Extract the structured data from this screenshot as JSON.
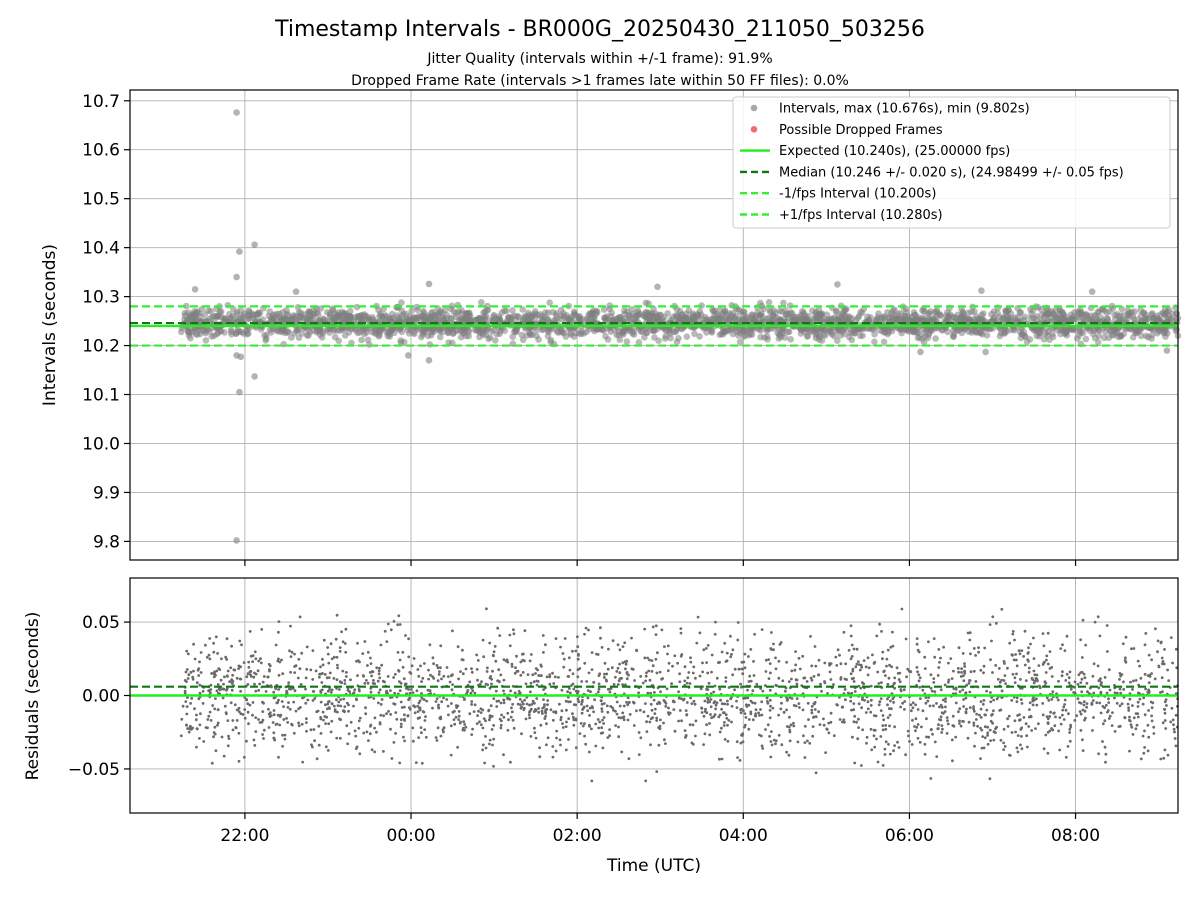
{
  "title": "Timestamp Intervals - BR000G_20250430_211050_503256",
  "subtitle_1": "Jitter Quality (intervals within +/-1 frame): 91.9%",
  "subtitle_2": "Dropped Frame Rate (intervals >1 frames late within 50 FF files): 0.0%",
  "colors": {
    "points": "#808080",
    "dropped": "#e8343a",
    "expected": "#22ee22",
    "median": "#117711",
    "fps_band": "#33ee33",
    "grid": "#b0b0b0"
  },
  "chart_data": [
    {
      "type": "scatter",
      "ylabel": "Intervals (seconds)",
      "xlabel": "",
      "xlim": [
        "20:37",
        "09:14"
      ],
      "ylim": [
        9.762,
        10.722
      ],
      "grid": true,
      "yticks": [
        "9.8",
        "9.9",
        "10.0",
        "10.1",
        "10.2",
        "10.3",
        "10.4",
        "10.5",
        "10.6",
        "10.7"
      ],
      "xticks": [
        "22:00",
        "00:00",
        "02:00",
        "04:00",
        "06:00",
        "08:00"
      ],
      "legend_position": "top-right",
      "legend": [
        {
          "label": "Intervals, max (10.676s), min (9.802s)",
          "kind": "marker",
          "color": "#a8a8a8"
        },
        {
          "label": "Possible Dropped Frames",
          "kind": "marker",
          "color": "#f06c70"
        },
        {
          "label": "Expected (10.240s), (25.00000 fps)",
          "kind": "solid",
          "color": "#22ee22"
        },
        {
          "label": "Median (10.246 +/- 0.020 s), (24.98499 +/- 0.05 fps)",
          "kind": "dashed",
          "color": "#117711"
        },
        {
          "label": "-1/fps Interval (10.200s)",
          "kind": "dashed",
          "color": "#33ee33"
        },
        {
          "label": "+1/fps Interval (10.280s)",
          "kind": "dashed",
          "color": "#33ee33"
        }
      ],
      "series": [
        {
          "name": "Intervals, max (10.676s), min (9.802s)",
          "distribution": "dense band around median",
          "center": 10.246,
          "spread": 0.02,
          "time_range": [
            "21:14",
            "09:14"
          ]
        },
        {
          "name": "Possible Dropped Frames",
          "values": []
        }
      ],
      "reference_lines": [
        {
          "name": "Expected",
          "y": 10.24,
          "style": "solid"
        },
        {
          "name": "Median",
          "y": 10.246,
          "style": "dashed"
        },
        {
          "name": "-1/fps Interval",
          "y": 10.2,
          "style": "dashed"
        },
        {
          "name": "+1/fps Interval",
          "y": 10.28,
          "style": "dashed"
        }
      ],
      "outliers": [
        {
          "x": "21:54",
          "y": 10.676
        },
        {
          "x": "21:56",
          "y": 10.392
        },
        {
          "x": "22:07",
          "y": 10.406
        },
        {
          "x": "21:54",
          "y": 10.34
        },
        {
          "x": "21:56",
          "y": 10.105
        },
        {
          "x": "22:07",
          "y": 10.137
        },
        {
          "x": "21:54",
          "y": 10.18
        },
        {
          "x": "21:57",
          "y": 10.177
        },
        {
          "x": "21:54",
          "y": 9.802
        },
        {
          "x": "00:13",
          "y": 10.326
        },
        {
          "x": "00:13",
          "y": 10.17
        },
        {
          "x": "23:58",
          "y": 10.18
        },
        {
          "x": "21:24",
          "y": 10.315
        },
        {
          "x": "22:37",
          "y": 10.31
        },
        {
          "x": "02:58",
          "y": 10.32
        },
        {
          "x": "05:08",
          "y": 10.325
        },
        {
          "x": "06:52",
          "y": 10.312
        },
        {
          "x": "08:12",
          "y": 10.31
        },
        {
          "x": "09:06",
          "y": 10.19
        },
        {
          "x": "06:08",
          "y": 10.187
        },
        {
          "x": "06:55",
          "y": 10.187
        }
      ]
    },
    {
      "type": "scatter",
      "ylabel": "Residuals (seconds)",
      "xlabel": "Time (UTC)",
      "xlim": [
        "20:37",
        "09:14"
      ],
      "ylim": [
        -0.08,
        0.08
      ],
      "grid": true,
      "yticks": [
        "−0.05",
        "0.00",
        "0.05"
      ],
      "xticks": [
        "22:00",
        "00:00",
        "02:00",
        "04:00",
        "06:00",
        "08:00"
      ],
      "series": [
        {
          "name": "Residuals",
          "distribution": "uniform noise",
          "center": 0.0,
          "spread": 0.02,
          "time_range": [
            "21:14",
            "09:14"
          ]
        }
      ],
      "reference_lines": [
        {
          "name": "Expected",
          "y": 0.0,
          "style": "solid"
        },
        {
          "name": "Median",
          "y": 0.006,
          "style": "dashed"
        }
      ]
    }
  ]
}
